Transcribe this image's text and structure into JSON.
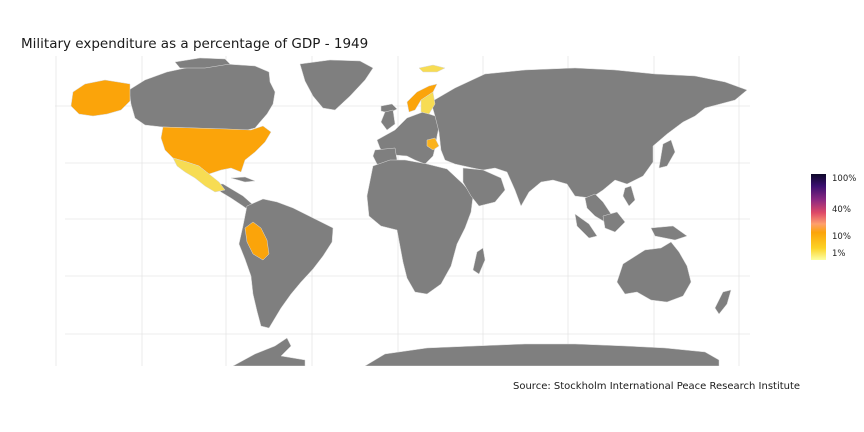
{
  "title": "Military expenditure as a percentage of GDP - 1949",
  "source": "Source: Stockholm International Peace Research Institute",
  "legend": {
    "ticks": [
      "100%",
      "40%",
      "10%",
      "1%"
    ],
    "colors": [
      "#0d0829",
      "#3b0f70",
      "#8c2981",
      "#de4968",
      "#fe9f6d",
      "#fba40a",
      "#fcd225",
      "#fcffa4"
    ]
  },
  "colors": {
    "land": "#7f7f7f",
    "border": "#d9d9d9",
    "grid": "#e6e6e6",
    "orange": "#fba40a",
    "yellow": "#f7dc53",
    "light_orange": "#fbb31e"
  },
  "highlighted_regions": [
    {
      "name": "United States",
      "color": "orange"
    },
    {
      "name": "Alaska",
      "color": "orange"
    },
    {
      "name": "Mexico",
      "color": "yellow"
    },
    {
      "name": "Peru",
      "color": "orange"
    },
    {
      "name": "Norway",
      "color": "orange"
    },
    {
      "name": "Sweden",
      "color": "yellow"
    },
    {
      "name": "Svalbard",
      "color": "yellow"
    },
    {
      "name": "Balkans",
      "color": "light_orange"
    }
  ]
}
